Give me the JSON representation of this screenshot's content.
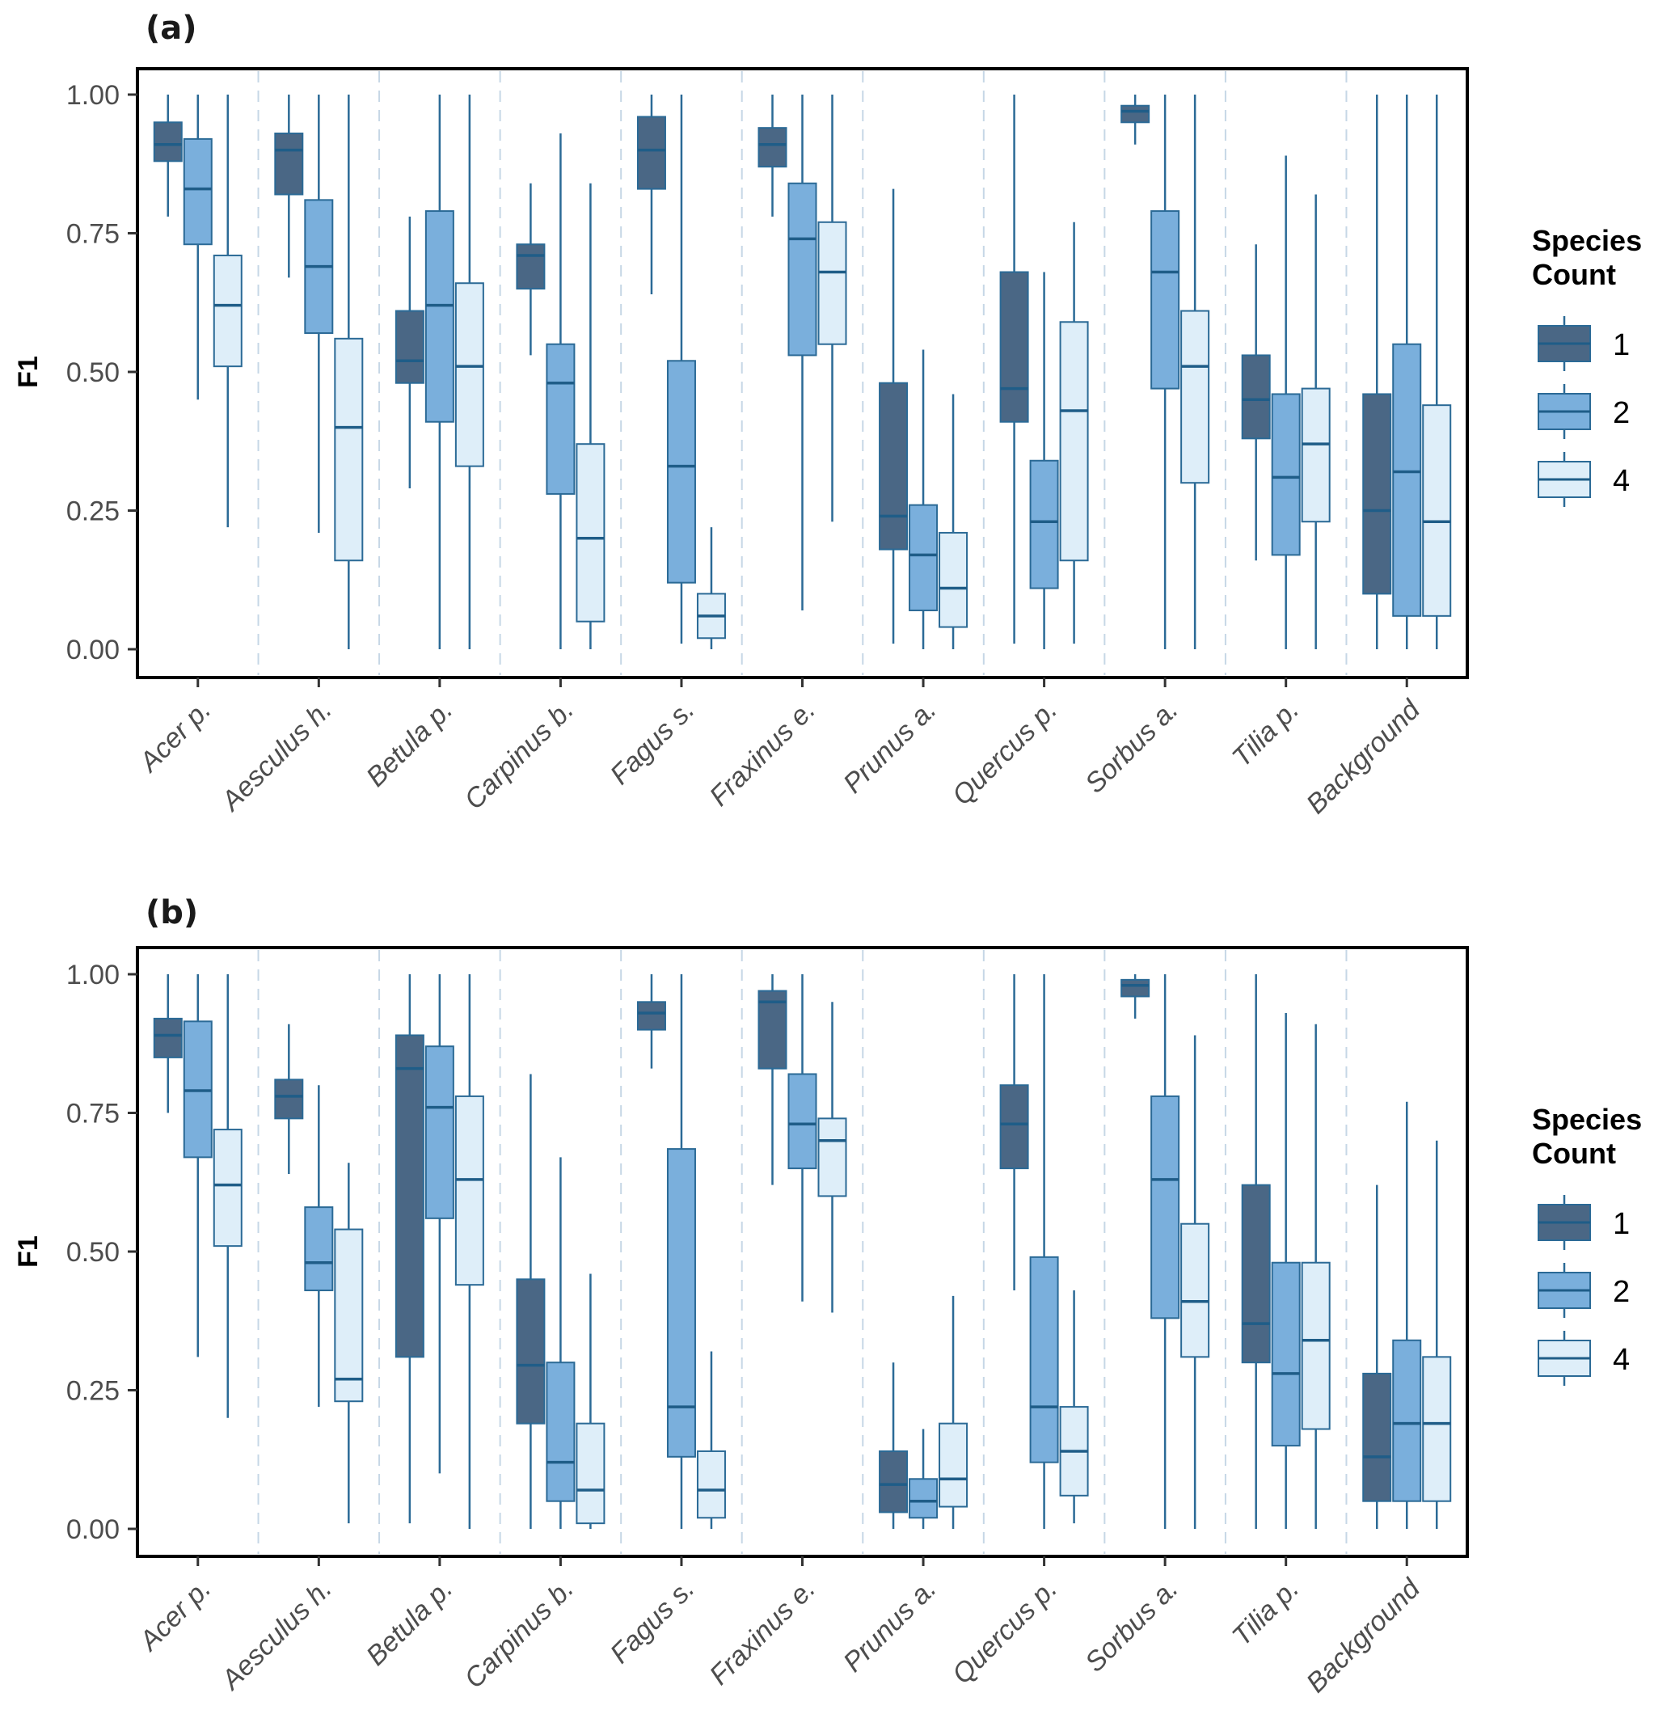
{
  "chart_data": [
    {
      "type": "boxplot",
      "panel_label": "(a)",
      "title": "",
      "xlabel": "",
      "ylabel": "F1",
      "ylim": [
        0,
        1
      ],
      "yticks": [
        "0.00",
        "0.25",
        "0.50",
        "0.75",
        "1.00"
      ],
      "grid": "dashed vertical separators between categories",
      "legend": {
        "title": "Species Count",
        "placement": "right",
        "entries": [
          "1",
          "2",
          "4"
        ]
      },
      "categories": [
        "Acer p.",
        "Aesculus h.",
        "Betula p.",
        "Carpinus b.",
        "Fagus s.",
        "Fraxinus e.",
        "Prunus a.",
        "Quercus p.",
        "Sorbus a.",
        "Tilia p.",
        "Background"
      ],
      "series": [
        {
          "name": "1",
          "color": "#4a6785",
          "boxes": [
            {
              "min": 0.78,
              "q1": 0.88,
              "median": 0.91,
              "q3": 0.95,
              "max": 1.0
            },
            {
              "min": 0.67,
              "q1": 0.82,
              "median": 0.9,
              "q3": 0.93,
              "max": 1.0
            },
            {
              "min": 0.29,
              "q1": 0.48,
              "median": 0.52,
              "q3": 0.61,
              "max": 0.78
            },
            {
              "min": 0.53,
              "q1": 0.65,
              "median": 0.71,
              "q3": 0.73,
              "max": 0.84
            },
            {
              "min": 0.64,
              "q1": 0.83,
              "median": 0.9,
              "q3": 0.96,
              "max": 1.0
            },
            {
              "min": 0.78,
              "q1": 0.87,
              "median": 0.91,
              "q3": 0.94,
              "max": 1.0
            },
            {
              "min": 0.01,
              "q1": 0.18,
              "median": 0.24,
              "q3": 0.48,
              "max": 0.83
            },
            {
              "min": 0.01,
              "q1": 0.41,
              "median": 0.47,
              "q3": 0.68,
              "max": 1.0
            },
            {
              "min": 0.91,
              "q1": 0.95,
              "median": 0.97,
              "q3": 0.98,
              "max": 1.0
            },
            {
              "min": 0.16,
              "q1": 0.38,
              "median": 0.45,
              "q3": 0.53,
              "max": 0.73
            },
            {
              "min": 0.0,
              "q1": 0.1,
              "median": 0.25,
              "q3": 0.46,
              "max": 1.0
            }
          ]
        },
        {
          "name": "2",
          "color": "#7aafdc",
          "boxes": [
            {
              "min": 0.45,
              "q1": 0.73,
              "median": 0.83,
              "q3": 0.92,
              "max": 1.0
            },
            {
              "min": 0.21,
              "q1": 0.57,
              "median": 0.69,
              "q3": 0.81,
              "max": 1.0
            },
            {
              "min": 0.0,
              "q1": 0.41,
              "median": 0.62,
              "q3": 0.79,
              "max": 1.0
            },
            {
              "min": 0.0,
              "q1": 0.28,
              "median": 0.48,
              "q3": 0.55,
              "max": 0.93
            },
            {
              "min": 0.01,
              "q1": 0.12,
              "median": 0.33,
              "q3": 0.52,
              "max": 1.0
            },
            {
              "min": 0.07,
              "q1": 0.53,
              "median": 0.74,
              "q3": 0.84,
              "max": 1.0
            },
            {
              "min": 0.0,
              "q1": 0.07,
              "median": 0.17,
              "q3": 0.26,
              "max": 0.54
            },
            {
              "min": 0.0,
              "q1": 0.11,
              "median": 0.23,
              "q3": 0.34,
              "max": 0.68
            },
            {
              "min": 0.0,
              "q1": 0.47,
              "median": 0.68,
              "q3": 0.79,
              "max": 1.0
            },
            {
              "min": 0.0,
              "q1": 0.17,
              "median": 0.31,
              "q3": 0.46,
              "max": 0.89
            },
            {
              "min": 0.0,
              "q1": 0.06,
              "median": 0.32,
              "q3": 0.55,
              "max": 1.0
            }
          ]
        },
        {
          "name": "4",
          "color": "#deeef9",
          "boxes": [
            {
              "min": 0.22,
              "q1": 0.51,
              "median": 0.62,
              "q3": 0.71,
              "max": 1.0
            },
            {
              "min": 0.0,
              "q1": 0.16,
              "median": 0.4,
              "q3": 0.56,
              "max": 1.0
            },
            {
              "min": 0.0,
              "q1": 0.33,
              "median": 0.51,
              "q3": 0.66,
              "max": 1.0
            },
            {
              "min": 0.0,
              "q1": 0.05,
              "median": 0.2,
              "q3": 0.37,
              "max": 0.84
            },
            {
              "min": 0.0,
              "q1": 0.02,
              "median": 0.06,
              "q3": 0.1,
              "max": 0.22
            },
            {
              "min": 0.23,
              "q1": 0.55,
              "median": 0.68,
              "q3": 0.77,
              "max": 1.0
            },
            {
              "min": 0.0,
              "q1": 0.04,
              "median": 0.11,
              "q3": 0.21,
              "max": 0.46
            },
            {
              "min": 0.01,
              "q1": 0.16,
              "median": 0.43,
              "q3": 0.59,
              "max": 0.77
            },
            {
              "min": 0.0,
              "q1": 0.3,
              "median": 0.51,
              "q3": 0.61,
              "max": 1.0
            },
            {
              "min": 0.0,
              "q1": 0.23,
              "median": 0.37,
              "q3": 0.47,
              "max": 0.82
            },
            {
              "min": 0.0,
              "q1": 0.06,
              "median": 0.23,
              "q3": 0.44,
              "max": 1.0
            }
          ]
        }
      ]
    },
    {
      "type": "boxplot",
      "panel_label": "(b)",
      "title": "",
      "xlabel": "",
      "ylabel": "F1",
      "ylim": [
        0,
        1
      ],
      "yticks": [
        "0.00",
        "0.25",
        "0.50",
        "0.75",
        "1.00"
      ],
      "grid": "dashed vertical separators between categories",
      "legend": {
        "title": "Species Count",
        "placement": "right",
        "entries": [
          "1",
          "2",
          "4"
        ]
      },
      "categories": [
        "Acer p.",
        "Aesculus h.",
        "Betula p.",
        "Carpinus b.",
        "Fagus s.",
        "Fraxinus e.",
        "Prunus a.",
        "Quercus p.",
        "Sorbus a.",
        "Tilia p.",
        "Background"
      ],
      "series": [
        {
          "name": "1",
          "color": "#4a6785",
          "boxes": [
            {
              "min": 0.75,
              "q1": 0.85,
              "median": 0.89,
              "q3": 0.92,
              "max": 1.0
            },
            {
              "min": 0.64,
              "q1": 0.74,
              "median": 0.78,
              "q3": 0.81,
              "max": 0.91
            },
            {
              "min": 0.01,
              "q1": 0.31,
              "median": 0.83,
              "q3": 0.89,
              "max": 1.0
            },
            {
              "min": 0.0,
              "q1": 0.19,
              "median": 0.295,
              "q3": 0.45,
              "max": 0.82
            },
            {
              "min": 0.83,
              "q1": 0.9,
              "median": 0.93,
              "q3": 0.95,
              "max": 1.0
            },
            {
              "min": 0.62,
              "q1": 0.83,
              "median": 0.95,
              "q3": 0.97,
              "max": 1.0
            },
            {
              "min": 0.0,
              "q1": 0.03,
              "median": 0.08,
              "q3": 0.14,
              "max": 0.3
            },
            {
              "min": 0.43,
              "q1": 0.65,
              "median": 0.73,
              "q3": 0.8,
              "max": 1.0
            },
            {
              "min": 0.92,
              "q1": 0.96,
              "median": 0.98,
              "q3": 0.99,
              "max": 1.0
            },
            {
              "min": 0.0,
              "q1": 0.3,
              "median": 0.37,
              "q3": 0.62,
              "max": 1.0
            },
            {
              "min": 0.0,
              "q1": 0.05,
              "median": 0.13,
              "q3": 0.28,
              "max": 0.62
            }
          ]
        },
        {
          "name": "2",
          "color": "#7aafdc",
          "boxes": [
            {
              "min": 0.31,
              "q1": 0.67,
              "median": 0.79,
              "q3": 0.915,
              "max": 1.0
            },
            {
              "min": 0.22,
              "q1": 0.43,
              "median": 0.48,
              "q3": 0.58,
              "max": 0.8
            },
            {
              "min": 0.1,
              "q1": 0.56,
              "median": 0.76,
              "q3": 0.87,
              "max": 1.0
            },
            {
              "min": 0.0,
              "q1": 0.05,
              "median": 0.12,
              "q3": 0.3,
              "max": 0.67
            },
            {
              "min": 0.0,
              "q1": 0.13,
              "median": 0.22,
              "q3": 0.685,
              "max": 1.0
            },
            {
              "min": 0.41,
              "q1": 0.65,
              "median": 0.73,
              "q3": 0.82,
              "max": 1.0
            },
            {
              "min": 0.0,
              "q1": 0.02,
              "median": 0.05,
              "q3": 0.09,
              "max": 0.18
            },
            {
              "min": 0.0,
              "q1": 0.12,
              "median": 0.22,
              "q3": 0.49,
              "max": 1.0
            },
            {
              "min": 0.0,
              "q1": 0.38,
              "median": 0.63,
              "q3": 0.78,
              "max": 1.0
            },
            {
              "min": 0.0,
              "q1": 0.15,
              "median": 0.28,
              "q3": 0.48,
              "max": 0.93
            },
            {
              "min": 0.0,
              "q1": 0.05,
              "median": 0.19,
              "q3": 0.34,
              "max": 0.77
            }
          ]
        },
        {
          "name": "4",
          "color": "#deeef9",
          "boxes": [
            {
              "min": 0.2,
              "q1": 0.51,
              "median": 0.62,
              "q3": 0.72,
              "max": 1.0
            },
            {
              "min": 0.01,
              "q1": 0.23,
              "median": 0.27,
              "q3": 0.54,
              "max": 0.66
            },
            {
              "min": 0.0,
              "q1": 0.44,
              "median": 0.63,
              "q3": 0.78,
              "max": 1.0
            },
            {
              "min": 0.0,
              "q1": 0.01,
              "median": 0.07,
              "q3": 0.19,
              "max": 0.46
            },
            {
              "min": 0.0,
              "q1": 0.02,
              "median": 0.07,
              "q3": 0.14,
              "max": 0.32
            },
            {
              "min": 0.39,
              "q1": 0.6,
              "median": 0.7,
              "q3": 0.74,
              "max": 0.95
            },
            {
              "min": 0.0,
              "q1": 0.04,
              "median": 0.09,
              "q3": 0.19,
              "max": 0.42
            },
            {
              "min": 0.01,
              "q1": 0.06,
              "median": 0.14,
              "q3": 0.22,
              "max": 0.43
            },
            {
              "min": 0.0,
              "q1": 0.31,
              "median": 0.41,
              "q3": 0.55,
              "max": 0.89
            },
            {
              "min": 0.0,
              "q1": 0.18,
              "median": 0.34,
              "q3": 0.48,
              "max": 0.91
            },
            {
              "min": 0.0,
              "q1": 0.05,
              "median": 0.19,
              "q3": 0.31,
              "max": 0.7
            }
          ]
        }
      ]
    }
  ]
}
